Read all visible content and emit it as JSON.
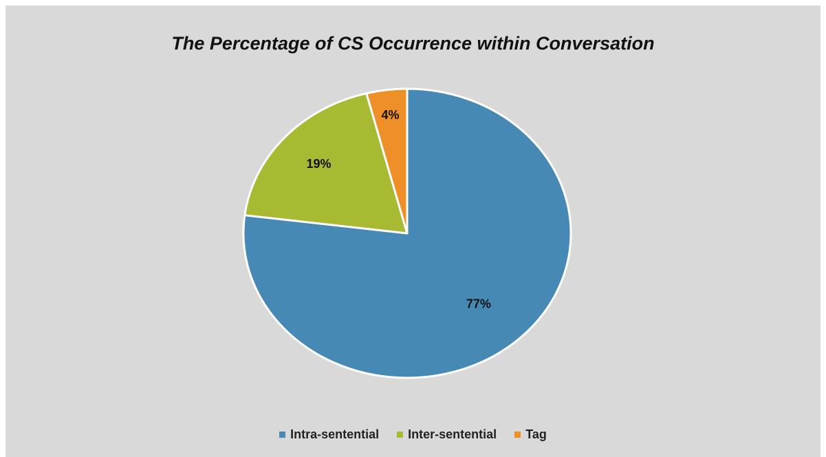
{
  "chart_data": {
    "type": "pie",
    "title": "The Percentage of CS Occurrence within Conversation",
    "slices": [
      {
        "label": "Intra-sentential",
        "value": 77,
        "display": "77%",
        "color": "#4589b4"
      },
      {
        "label": "Inter-sentential",
        "value": 19,
        "display": "19%",
        "color": "#a8b932"
      },
      {
        "label": "Tag",
        "value": 4,
        "display": "4%",
        "color": "#ee8f28"
      }
    ],
    "start_angle_deg": 0,
    "direction": "clockwise",
    "legend": {
      "position": "bottom"
    }
  }
}
